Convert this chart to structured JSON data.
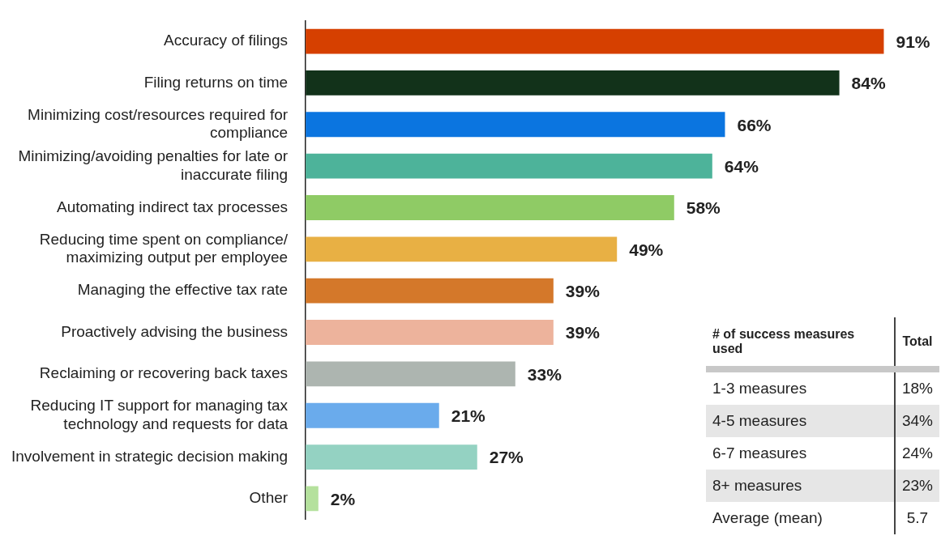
{
  "chart_data": [
    {
      "type": "bar",
      "orientation": "horizontal",
      "legend": false,
      "tick_labels": "y",
      "categories": [
        "Accuracy of filings",
        "Filing returns on time",
        "Minimizing cost/resources required for compliance",
        "Minimizing/avoiding penalties for late or inaccurate filing",
        "Automating indirect tax processes",
        "Reducing time spent on compliance/ maximizing output per employee",
        "Managing the effective tax rate",
        "Proactively advising the business",
        "Reclaiming or recovering back taxes",
        "Reducing IT support for managing tax technology and requests for data",
        "Involvement in strategic decision making",
        "Other"
      ],
      "values": [
        91,
        84,
        66,
        64,
        58,
        49,
        39,
        39,
        33,
        21,
        27,
        2
      ],
      "value_labels": [
        "91%",
        "84%",
        "66%",
        "64%",
        "58%",
        "49%",
        "39%",
        "39%",
        "33%",
        "21%",
        "27%",
        "2%"
      ],
      "colors": [
        "#d64000",
        "#12321a",
        "#0b75e0",
        "#4db39a",
        "#8fcb65",
        "#e8b044",
        "#d4782a",
        "#edb39c",
        "#adb5b0",
        "#6aabec",
        "#94d2c2",
        "#b5e19d"
      ]
    },
    {
      "type": "other",
      "annotations": [
        "# of success measures used",
        "Total"
      ],
      "categories": [
        "1-3 measures",
        "4-5 measures",
        "6-7 measures",
        "8+ measures",
        "Average (mean)"
      ],
      "value_labels": [
        "18%",
        "34%",
        "24%",
        "23%",
        "5.7"
      ]
    }
  ]
}
